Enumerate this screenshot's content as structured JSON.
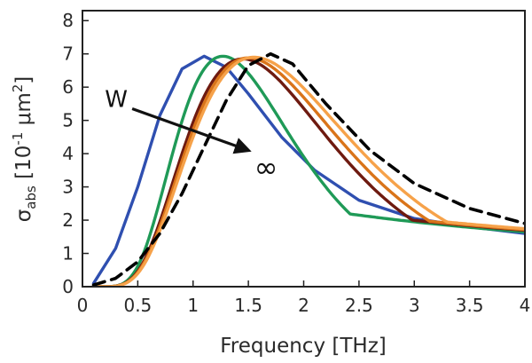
{
  "chart_data": {
    "type": "line",
    "xlabel": "Frequency [THz]",
    "ylabel": {
      "symbol": "σ",
      "subscript": "abs",
      "unit_open": " [10",
      "unit_exp": "-1",
      "unit_mid": " μm",
      "unit_sq": "2",
      "unit_close": "]"
    },
    "xlim": [
      0,
      4
    ],
    "ylim": [
      0,
      8.3
    ],
    "xticks": [
      0,
      0.5,
      1,
      1.5,
      2,
      2.5,
      3,
      3.5,
      4
    ],
    "xtick_labels": [
      "0",
      "0.5",
      "1",
      "1.5",
      "2",
      "2.5",
      "3",
      "3.5",
      "4"
    ],
    "yticks": [
      0,
      1,
      2,
      3,
      4,
      5,
      6,
      7,
      8
    ],
    "ytick_labels": [
      "0",
      "1",
      "2",
      "3",
      "4",
      "5",
      "6",
      "7",
      "8"
    ],
    "grid": false,
    "series": [
      {
        "color": "#2f4fb0",
        "dashed": false,
        "peak_x": 1.1,
        "peak_y": 6.93,
        "width": 0.55,
        "end_y": 1.6,
        "x": [
          0.1,
          0.3,
          0.5,
          0.7,
          0.9,
          1.1,
          1.3,
          1.5,
          1.8,
          2.1,
          2.5,
          3.0,
          3.5,
          4.0
        ],
        "y": [
          0.1,
          1.15,
          3.0,
          5.15,
          6.55,
          6.93,
          6.6,
          5.8,
          4.5,
          3.5,
          2.6,
          2.05,
          1.8,
          1.6
        ]
      },
      {
        "color": "#1f9a57",
        "dashed": false,
        "peak_x": 1.27,
        "peak_y": 6.93,
        "width": 0.6,
        "end_y": 1.65
      },
      {
        "color": "#6e1a10",
        "dashed": false,
        "peak_x": 1.45,
        "peak_y": 6.85,
        "width": 0.65,
        "end_y": 1.7
      },
      {
        "color": "#d9741a",
        "dashed": false,
        "peak_x": 1.5,
        "peak_y": 6.88,
        "width": 0.66,
        "end_y": 1.72
      },
      {
        "color": "#f6a24a",
        "dashed": false,
        "peak_x": 1.55,
        "peak_y": 6.9,
        "width": 0.67,
        "end_y": 1.75
      },
      {
        "color": "#000000",
        "dashed": true,
        "peak_x": 1.68,
        "peak_y": 7.0,
        "width": 0.7,
        "end_y": 1.9,
        "x": [
          0.1,
          0.3,
          0.5,
          0.7,
          0.9,
          1.1,
          1.3,
          1.5,
          1.7,
          1.9,
          2.2,
          2.6,
          3.0,
          3.5,
          4.0
        ],
        "y": [
          0.05,
          0.25,
          0.75,
          1.6,
          2.8,
          4.2,
          5.6,
          6.65,
          7.0,
          6.7,
          5.5,
          4.1,
          3.1,
          2.35,
          1.9
        ]
      }
    ],
    "annotations": {
      "start_label": "W",
      "end_label": "∞",
      "arrow_from": [
        0.45,
        5.35
      ],
      "arrow_to": [
        1.5,
        4.1
      ]
    }
  }
}
